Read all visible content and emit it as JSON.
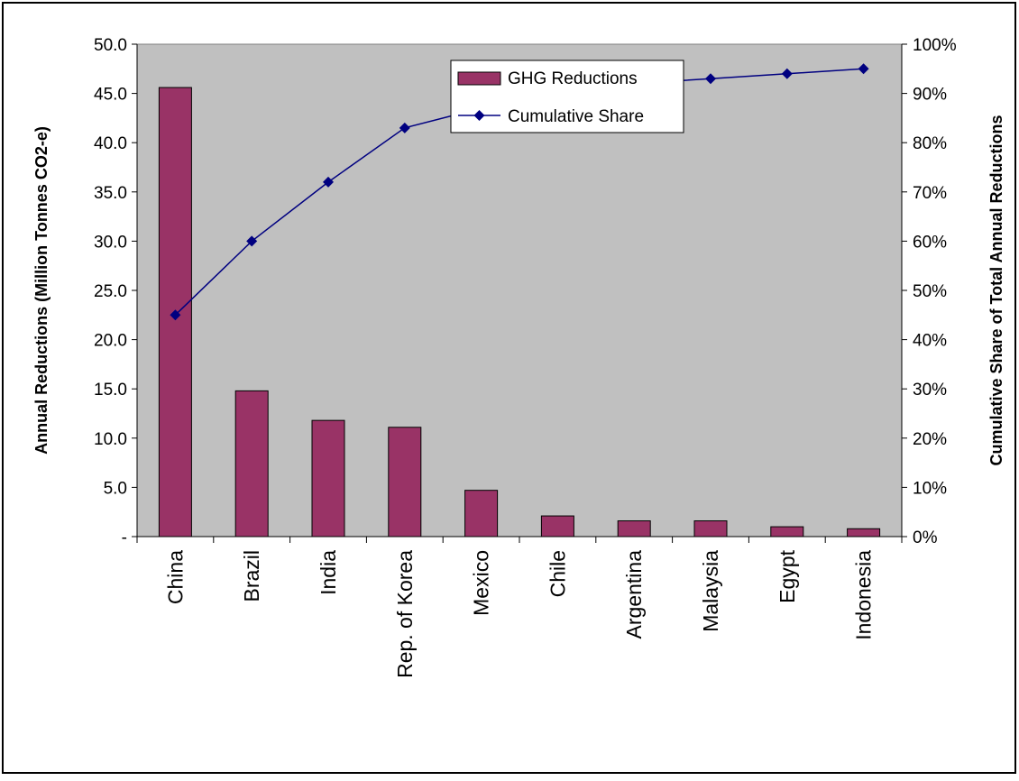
{
  "chart_data": {
    "type": "bar",
    "title": "",
    "categories": [
      "China",
      "Brazil",
      "India",
      "Rep. of Korea",
      "Mexico",
      "Chile",
      "Argentina",
      "Malaysia",
      "Egypt",
      "Indonesia"
    ],
    "series": [
      {
        "name": "GHG Reductions",
        "type": "bar",
        "axis": "left",
        "values": [
          45.6,
          14.8,
          11.8,
          11.1,
          4.7,
          2.1,
          1.6,
          1.6,
          1.0,
          0.8
        ],
        "color": "#993366"
      },
      {
        "name": "Cumulative Share",
        "type": "line",
        "axis": "right",
        "values": [
          0.45,
          0.6,
          0.72,
          0.83,
          0.87,
          0.905,
          0.92,
          0.93,
          0.94,
          0.95
        ],
        "color": "#000080",
        "marker": "diamond"
      }
    ],
    "ylabel": "Annual Reductions (Million Tonnes CO2-e)",
    "y2label": "Cumulative Share of Total Annual Reductions",
    "ylim": [
      0,
      50
    ],
    "y2lim": [
      0,
      1
    ],
    "yticks": [
      "-",
      "5.0",
      "10.0",
      "15.0",
      "20.0",
      "25.0",
      "30.0",
      "35.0",
      "40.0",
      "45.0",
      "50.0"
    ],
    "y2ticks": [
      "0%",
      "10%",
      "20%",
      "30%",
      "40%",
      "50%",
      "60%",
      "70%",
      "80%",
      "90%",
      "100%"
    ],
    "plot_background": "#c0c0c0",
    "grid": false,
    "legend_position": "top-center"
  }
}
